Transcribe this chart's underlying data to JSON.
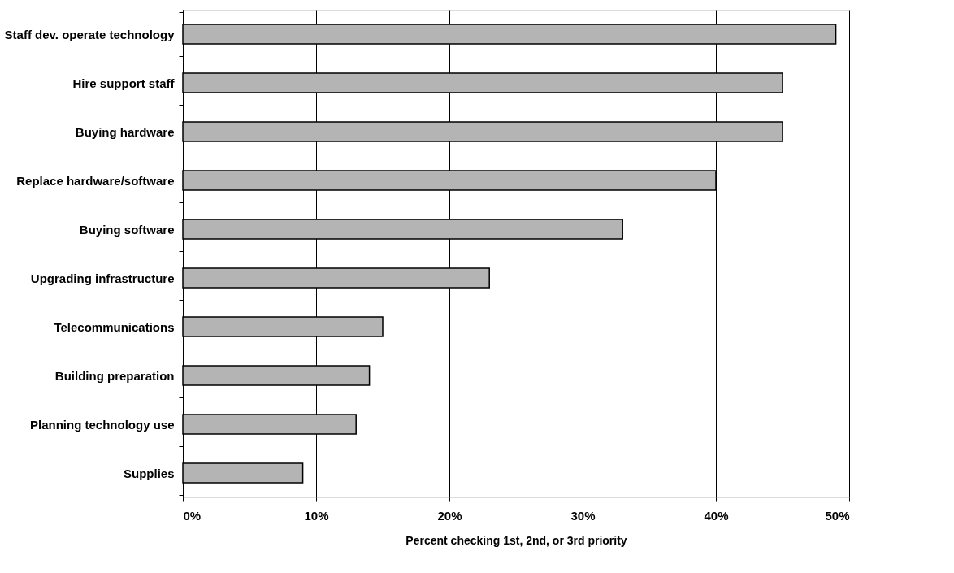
{
  "chart_data": {
    "type": "bar",
    "orientation": "horizontal",
    "xlabel": "Percent checking 1st, 2nd, or 3rd priority",
    "categories": [
      "Staff dev. operate technology",
      "Hire support staff",
      "Buying hardware",
      "Replace hardware/software",
      "Buying software",
      "Upgrading infrastructure",
      "Telecommunications",
      "Building preparation",
      "Planning technology use",
      "Supplies"
    ],
    "values": [
      49,
      45,
      45,
      40,
      33,
      23,
      15,
      14,
      13,
      9
    ],
    "color": "#b4b4b4",
    "xlim": [
      0,
      50
    ],
    "xticks": [
      {
        "value": 0,
        "label": "0%"
      },
      {
        "value": 10,
        "label": "10%"
      },
      {
        "value": 20,
        "label": "20%"
      },
      {
        "value": 30,
        "label": "30%"
      },
      {
        "value": 40,
        "label": "40%"
      },
      {
        "value": 50,
        "label": "50%"
      }
    ],
    "grid": "x"
  }
}
